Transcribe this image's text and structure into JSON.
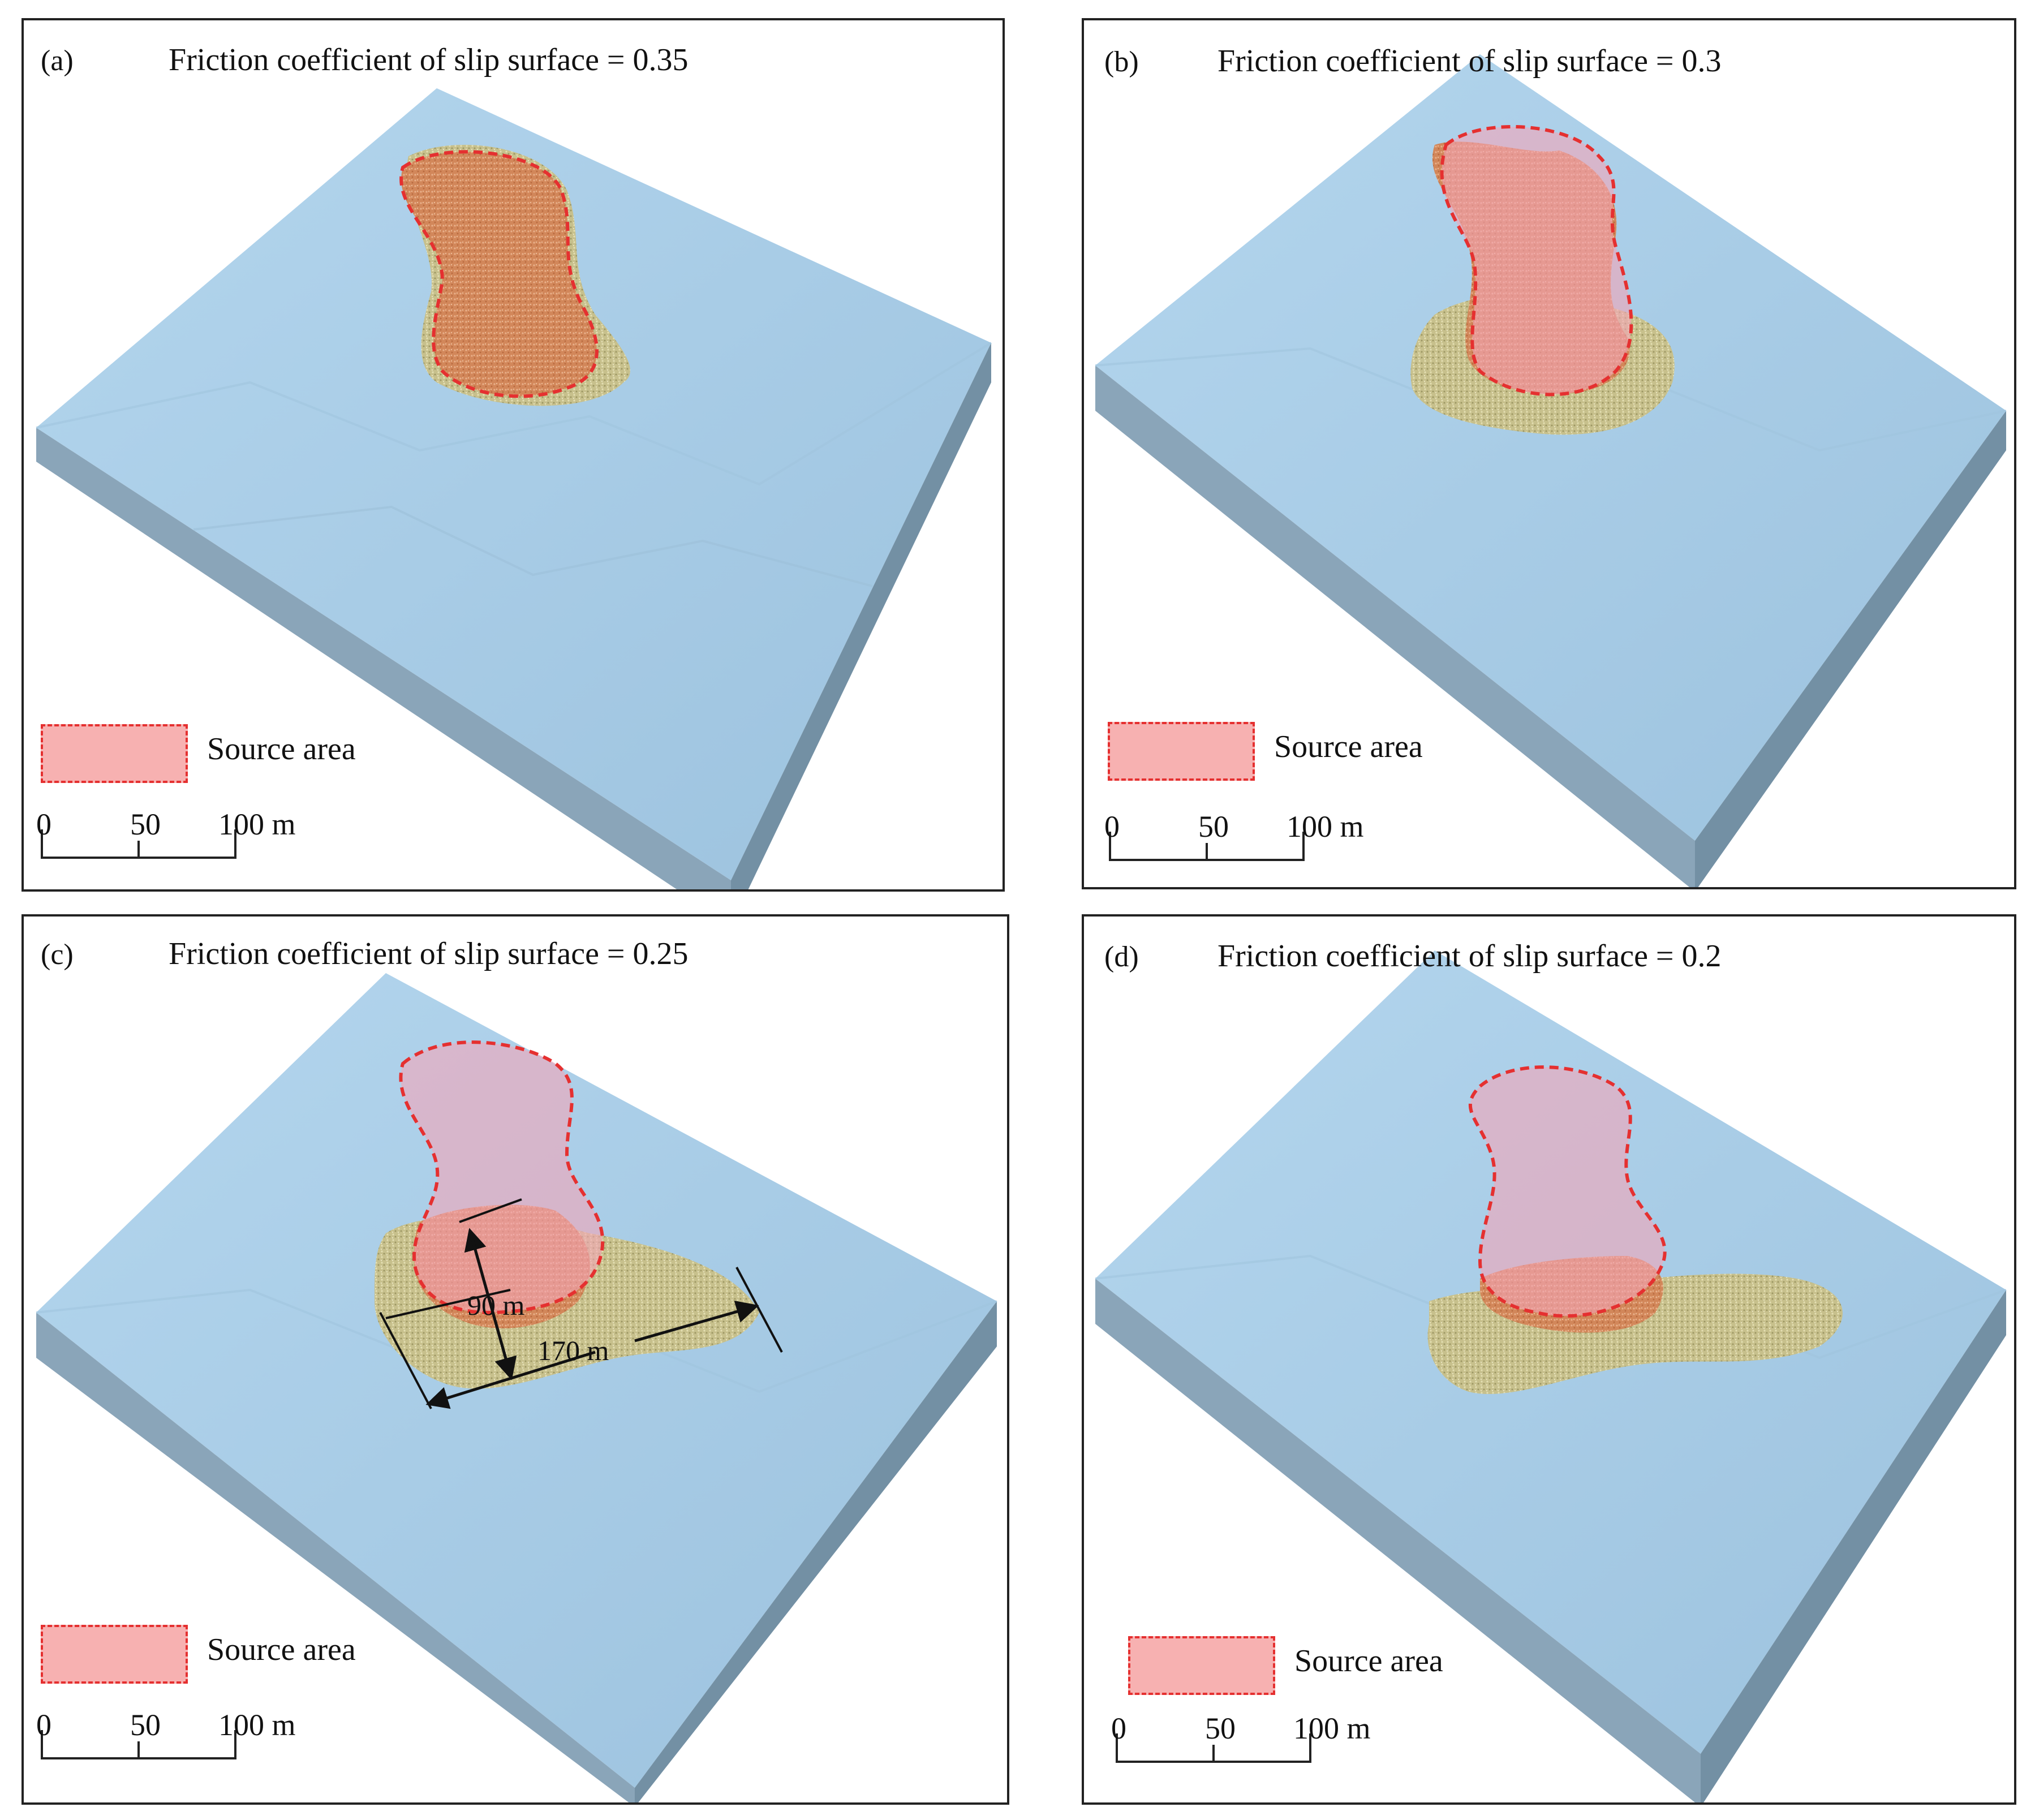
{
  "panels": [
    {
      "label": "(a)",
      "title": "Friction coefficient of slip surface = 0.35"
    },
    {
      "label": "(b)",
      "title": "Friction coefficient of slip surface = 0.3"
    },
    {
      "label": "(c)",
      "title": "Friction coefficient of slip surface = 0.25"
    },
    {
      "label": "(d)",
      "title": "Friction coefficient of slip surface = 0.2"
    }
  ],
  "legend": {
    "source_label": "Source area"
  },
  "scale": {
    "ticks": [
      "0",
      "50",
      "100 m"
    ]
  },
  "dimensions": {
    "length": "170 m",
    "width": "90 m"
  },
  "colors": {
    "terrain_top": "#a9cde6",
    "terrain_side": "#7f9bb0",
    "source_fill": "#f3a5b8",
    "source_outline": "#e53030",
    "deposit_orange": "#d58a5c",
    "deposit_yellow": "#c9c391"
  }
}
